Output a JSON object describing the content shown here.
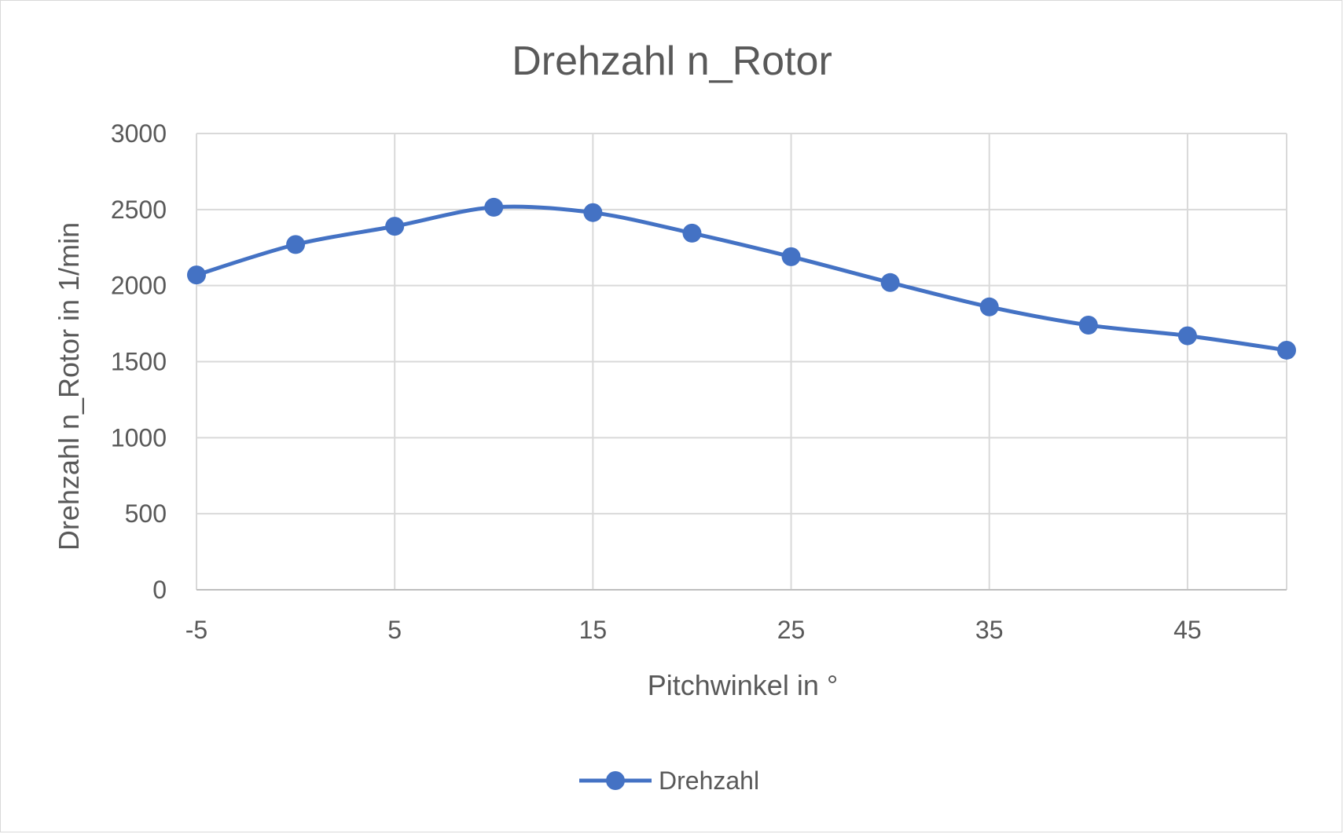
{
  "chart_data": {
    "type": "line",
    "title": "Drehzahl n_Rotor",
    "xlabel": "Pitchwinkel in °",
    "ylabel": "Drehzahl n_Rotor in 1/min",
    "x": [
      -5,
      0,
      5,
      10,
      15,
      20,
      25,
      30,
      35,
      40,
      45,
      50
    ],
    "x_tick_labels": [
      "-5",
      "5",
      "15",
      "25",
      "35",
      "45"
    ],
    "y_tick_labels": [
      "0",
      "500",
      "1000",
      "1500",
      "2000",
      "2500",
      "3000"
    ],
    "ylim": [
      0,
      3000
    ],
    "xlim": [
      -5,
      50
    ],
    "grid": true,
    "legend_position": "bottom",
    "series": [
      {
        "name": "Drehzahl",
        "color": "#4472c4",
        "smooth": true,
        "marker": "circle",
        "values": [
          2070,
          2270,
          2390,
          2515,
          2480,
          2345,
          2190,
          2020,
          1860,
          1740,
          1670,
          1575
        ]
      }
    ]
  }
}
